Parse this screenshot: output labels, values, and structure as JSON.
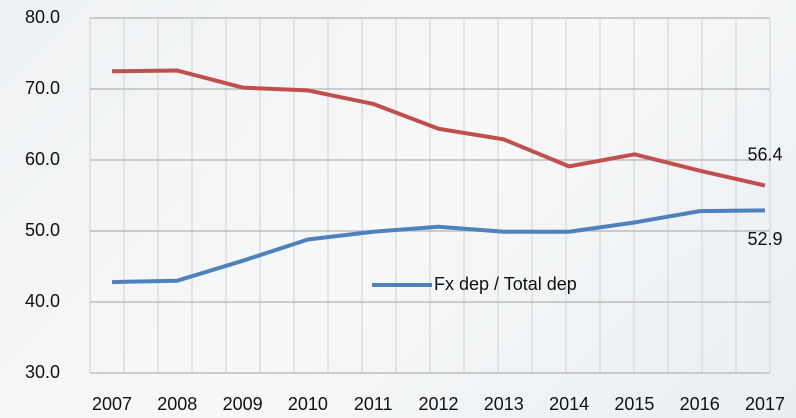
{
  "chart_data": {
    "type": "line",
    "categories": [
      "2007",
      "2008",
      "2009",
      "2010",
      "2011",
      "2012",
      "2013",
      "2014",
      "2015",
      "2016",
      "2017"
    ],
    "series": [
      {
        "color": "#c0504d",
        "values": [
          72.5,
          72.6,
          70.2,
          69.8,
          67.9,
          64.4,
          62.9,
          59.1,
          60.8,
          58.5,
          56.4
        ]
      },
      {
        "name": "Fx dep / Total dep",
        "color": "#4f81bd",
        "values": [
          42.8,
          43.0,
          45.8,
          48.8,
          49.9,
          50.6,
          49.9,
          49.9,
          51.2,
          52.8,
          52.9
        ]
      }
    ],
    "ylim": [
      30,
      80
    ],
    "yticks": [
      {
        "value": 30,
        "label": "30.0"
      },
      {
        "value": 40,
        "label": "40.0"
      },
      {
        "value": 50,
        "label": "50.0"
      },
      {
        "value": 60,
        "label": "60.0"
      },
      {
        "value": 70,
        "label": "70.0"
      },
      {
        "value": 80,
        "label": "80.0"
      }
    ],
    "grid": true,
    "label_last_point": true
  }
}
